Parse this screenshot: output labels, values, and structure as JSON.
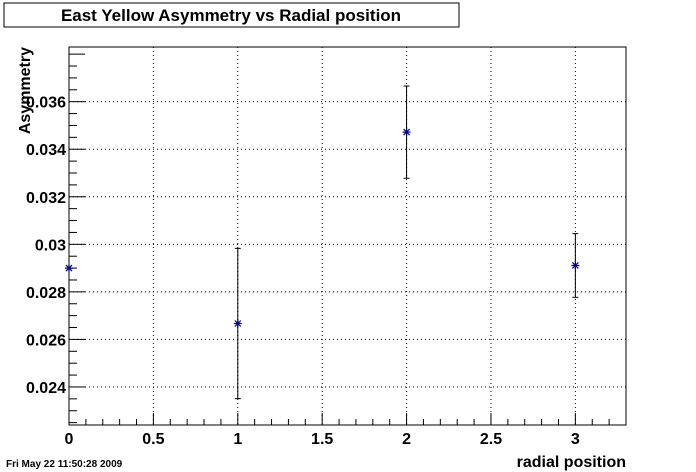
{
  "chart_data": {
    "type": "scatter",
    "title": "East Yellow Asymmetry vs Radial position",
    "xlabel": "radial position",
    "ylabel": "Asymmetry",
    "xlim": [
      0,
      3.3
    ],
    "ylim": [
      0.0224,
      0.0383
    ],
    "x_ticks": [
      0,
      0.5,
      1,
      1.5,
      2,
      2.5,
      3
    ],
    "x_tick_labels": [
      "0",
      "0.5",
      "1",
      "1.5",
      "2",
      "2.5",
      "3"
    ],
    "y_ticks": [
      0.024,
      0.026,
      0.028,
      0.03,
      0.032,
      0.034,
      0.036
    ],
    "y_tick_labels": [
      "0.024",
      "0.026",
      "0.028",
      "0.03",
      "0.032",
      "0.034",
      "0.036"
    ],
    "grid": true,
    "marker": "asterisk",
    "marker_color": "#00008b",
    "points": [
      {
        "x": 0,
        "y": 0.029,
        "err": 0.0
      },
      {
        "x": 1,
        "y": 0.02667,
        "err": 0.00316
      },
      {
        "x": 2,
        "y": 0.03472,
        "err": 0.00194
      },
      {
        "x": 3,
        "y": 0.02911,
        "err": 0.00134
      }
    ]
  },
  "footer": {
    "timestamp": "Fri May 22 11:50:28 2009"
  }
}
